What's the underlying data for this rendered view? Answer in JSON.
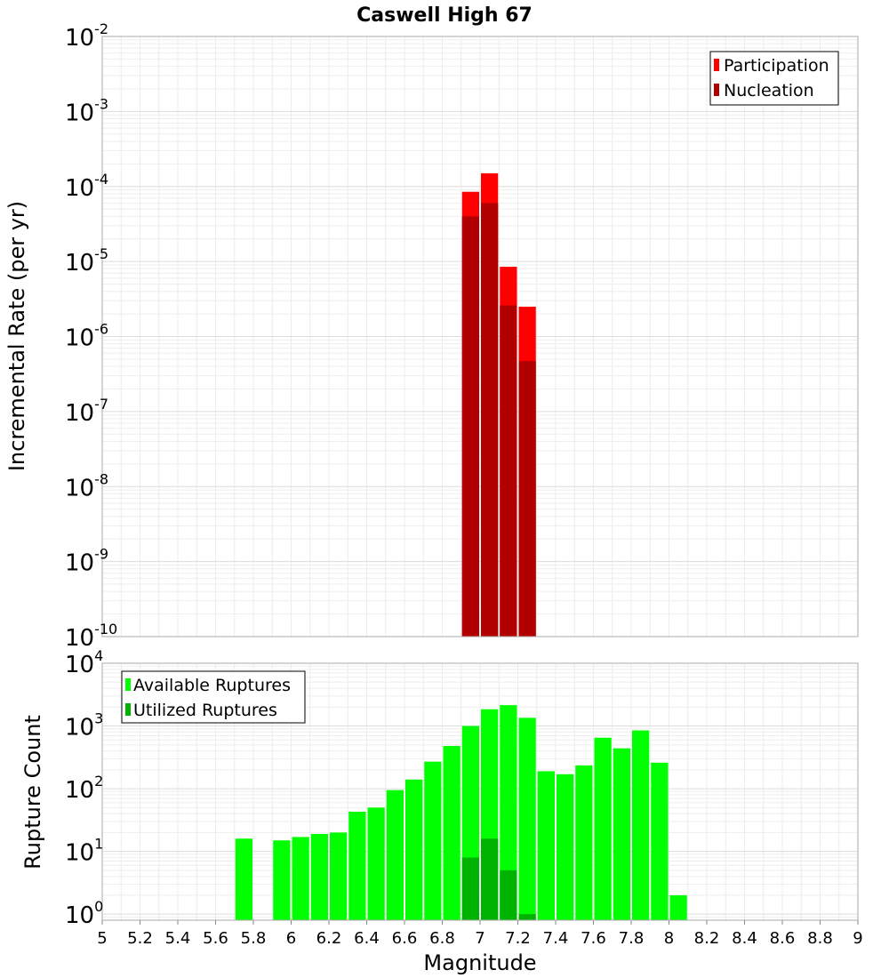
{
  "chart_data": [
    {
      "type": "bar",
      "title": "Caswell High 67",
      "xlabel": "",
      "ylabel": "Incremental Rate (per yr)",
      "yscale": "log",
      "xlim": [
        5,
        9
      ],
      "ylim": [
        1e-10,
        0.01
      ],
      "legend_position": "top-right",
      "y_tick_bases": [
        "10",
        "10",
        "10",
        "10",
        "10",
        "10",
        "10",
        "10",
        "10"
      ],
      "y_tick_exponents": [
        "-10",
        "-9",
        "-8",
        "-7",
        "-6",
        "-5",
        "-4",
        "-3",
        "-2"
      ],
      "bin_width": 0.1,
      "series": [
        {
          "name": "Participation",
          "color": "#ff0000",
          "x": [
            6.95,
            7.05,
            7.15,
            7.25
          ],
          "values": [
            8.5e-05,
            0.00015,
            8.5e-06,
            2.5e-06
          ]
        },
        {
          "name": "Nucleation",
          "color": "#b20000",
          "x": [
            6.95,
            7.05,
            7.15,
            7.25
          ],
          "values": [
            4e-05,
            6e-05,
            2.6e-06,
            4.7e-07
          ]
        }
      ]
    },
    {
      "type": "bar",
      "title": "",
      "xlabel": "Magnitude",
      "ylabel": "Rupture Count",
      "yscale": "log",
      "xlim": [
        5,
        9
      ],
      "ylim": [
        0.8,
        10000
      ],
      "legend_position": "top-left",
      "x_tick_labels": [
        "5",
        "5.2",
        "5.4",
        "5.6",
        "5.8",
        "6",
        "6.2",
        "6.4",
        "6.6",
        "6.8",
        "7",
        "7.2",
        "7.4",
        "7.6",
        "7.8",
        "8",
        "8.2",
        "8.4",
        "8.6",
        "8.8",
        "9"
      ],
      "y_tick_bases": [
        "10",
        "10",
        "10",
        "10",
        "10"
      ],
      "y_tick_exponents": [
        "0",
        "1",
        "2",
        "3",
        "4"
      ],
      "bin_width": 0.1,
      "series": [
        {
          "name": "Available Ruptures",
          "color": "#00ff00",
          "x": [
            5.75,
            5.95,
            6.05,
            6.15,
            6.25,
            6.35,
            6.45,
            6.55,
            6.65,
            6.75,
            6.85,
            6.95,
            7.05,
            7.15,
            7.25,
            7.35,
            7.45,
            7.55,
            7.65,
            7.75,
            7.85,
            7.95,
            8.05
          ],
          "values": [
            16,
            15,
            17,
            19,
            20,
            43,
            50,
            95,
            140,
            270,
            480,
            1000,
            1850,
            2150,
            1350,
            190,
            170,
            235,
            650,
            440,
            850,
            260,
            2
          ]
        },
        {
          "name": "Utilized Ruptures",
          "color": "#00b300",
          "x": [
            6.95,
            7.05,
            7.15,
            7.25
          ],
          "values": [
            8,
            16,
            5,
            1
          ]
        }
      ]
    }
  ]
}
